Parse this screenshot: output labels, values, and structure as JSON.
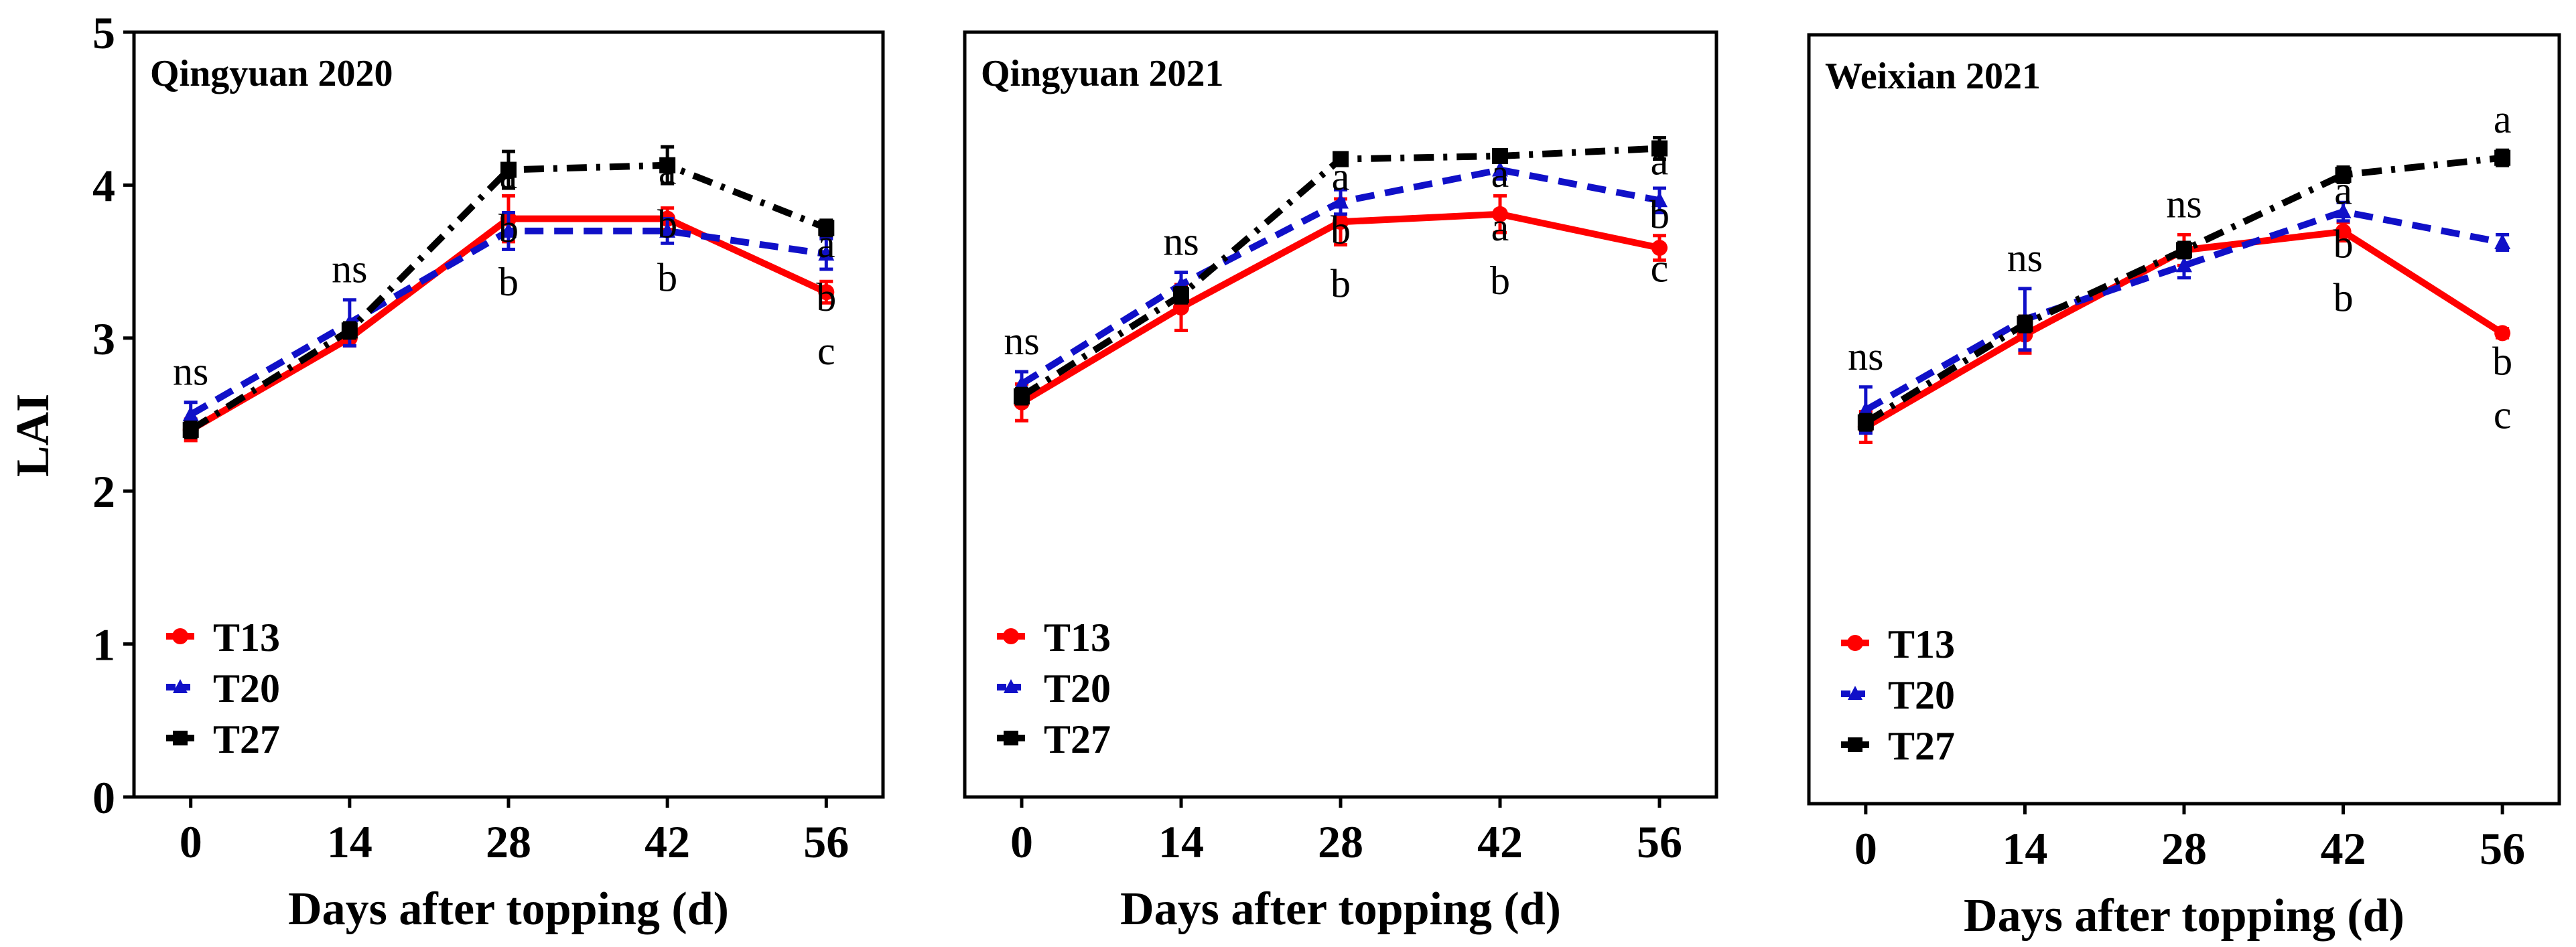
{
  "chart_data": {
    "type": "line",
    "ylabel": "LAI",
    "ylim": [
      0,
      5
    ],
    "yticks": [
      0,
      1,
      2,
      3,
      4,
      5
    ],
    "xlabel": "Days after topping (d)",
    "xticks": [
      0,
      14,
      28,
      42,
      56
    ],
    "series_style": {
      "T13": {
        "color": "#ff0000",
        "dash": "solid",
        "marker": "circle"
      },
      "T20": {
        "color": "#1010c8",
        "dash": "dashed",
        "marker": "triangle"
      },
      "T27": {
        "color": "#000000",
        "dash": "dashdot",
        "marker": "square"
      }
    },
    "panels": [
      {
        "title": "Qingyuan 2020",
        "series": [
          {
            "name": "T13",
            "x": [
              0,
              14,
              28,
              42,
              56
            ],
            "y": [
              2.4,
              3.0,
              3.78,
              3.78,
              3.3
            ],
            "err": [
              0.07,
              0.05,
              0.15,
              0.07,
              0.07
            ]
          },
          {
            "name": "T20",
            "x": [
              0,
              14,
              28,
              42,
              56
            ],
            "y": [
              2.5,
              3.1,
              3.7,
              3.7,
              3.55
            ],
            "err": [
              0.08,
              0.15,
              0.12,
              0.08,
              0.1
            ]
          },
          {
            "name": "T27",
            "x": [
              0,
              14,
              28,
              42,
              56
            ],
            "y": [
              2.4,
              3.05,
              4.1,
              4.13,
              3.72
            ],
            "err": [
              0.05,
              0.05,
              0.12,
              0.12,
              0.05
            ]
          }
        ],
        "annotations": [
          {
            "x": 0,
            "lines": [
              "ns"
            ]
          },
          {
            "x": 14,
            "lines": [
              "ns"
            ]
          },
          {
            "x": 28,
            "lines": [
              "a",
              "b",
              "b"
            ]
          },
          {
            "x": 42,
            "lines": [
              "a",
              "b",
              "b"
            ]
          },
          {
            "x": 56,
            "lines": [
              "a",
              "b",
              "c"
            ]
          }
        ]
      },
      {
        "title": "Qingyuan 2021",
        "series": [
          {
            "name": "T13",
            "x": [
              0,
              14,
              28,
              42,
              56
            ],
            "y": [
              2.58,
              3.2,
              3.76,
              3.81,
              3.59
            ],
            "err": [
              0.12,
              0.15,
              0.15,
              0.12,
              0.08
            ]
          },
          {
            "name": "T20",
            "x": [
              0,
              14,
              28,
              42,
              56
            ],
            "y": [
              2.7,
              3.35,
              3.89,
              4.1,
              3.9
            ],
            "err": [
              0.08,
              0.08,
              0.08,
              0.06,
              0.08
            ]
          },
          {
            "name": "T27",
            "x": [
              0,
              14,
              28,
              42,
              56
            ],
            "y": [
              2.62,
              3.28,
              4.17,
              4.19,
              4.24
            ],
            "err": [
              0.05,
              0.05,
              0.04,
              0.04,
              0.07
            ]
          }
        ],
        "annotations": [
          {
            "x": 0,
            "lines": [
              "ns"
            ]
          },
          {
            "x": 14,
            "lines": [
              "ns"
            ]
          },
          {
            "x": 28,
            "lines": [
              "a",
              "b",
              "b"
            ]
          },
          {
            "x": 42,
            "lines": [
              "a",
              "a",
              "b"
            ]
          },
          {
            "x": 56,
            "lines": [
              "a",
              "b",
              "c"
            ]
          }
        ]
      },
      {
        "title": "Weixian 2021",
        "series": [
          {
            "name": "T13",
            "x": [
              0,
              14,
              28,
              42,
              56
            ],
            "y": [
              2.45,
              3.05,
              3.6,
              3.72,
              3.06
            ],
            "err": [
              0.1,
              0.12,
              0.1,
              0.06,
              0.03
            ]
          },
          {
            "name": "T20",
            "x": [
              0,
              14,
              28,
              42,
              56
            ],
            "y": [
              2.56,
              3.15,
              3.5,
              3.85,
              3.65
            ],
            "err": [
              0.15,
              0.2,
              0.08,
              0.06,
              0.05
            ]
          },
          {
            "name": "T27",
            "x": [
              0,
              14,
              28,
              42,
              56
            ],
            "y": [
              2.48,
              3.12,
              3.6,
              4.09,
              4.2
            ],
            "err": [
              0.05,
              0.05,
              0.05,
              0.05,
              0.05
            ]
          }
        ],
        "annotations": [
          {
            "x": 0,
            "lines": [
              "ns"
            ]
          },
          {
            "x": 14,
            "lines": [
              "ns"
            ]
          },
          {
            "x": 28,
            "lines": [
              "ns"
            ]
          },
          {
            "x": 42,
            "lines": [
              "a",
              "b",
              "b"
            ]
          },
          {
            "x": 56,
            "lines": [
              "a",
              "b",
              "c"
            ],
            "top_above": true
          }
        ]
      }
    ]
  }
}
